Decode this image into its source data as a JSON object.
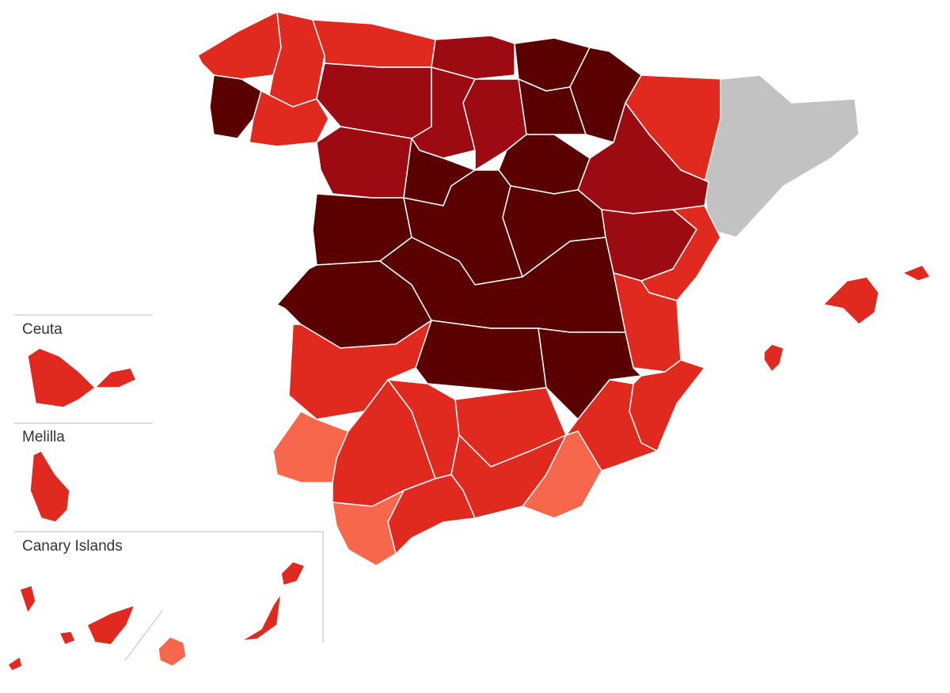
{
  "insets": {
    "ceuta": {
      "label": "Ceuta"
    },
    "melilla": {
      "label": "Melilla"
    },
    "canary": {
      "label": "Canary Islands"
    }
  }
}
